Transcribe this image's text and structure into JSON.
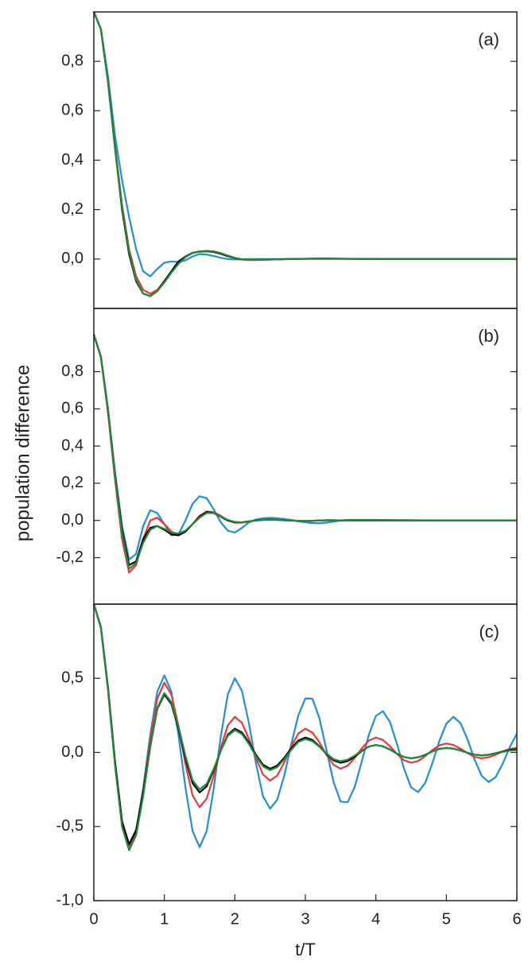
{
  "chart_data": [
    {
      "type": "line",
      "label": "(a)",
      "x": [
        0,
        0.1,
        0.2,
        0.3,
        0.4,
        0.5,
        0.6,
        0.7,
        0.8,
        0.9,
        1.0,
        1.1,
        1.2,
        1.3,
        1.4,
        1.5,
        1.6,
        1.7,
        1.8,
        1.9,
        2.0,
        2.1,
        2.2,
        2.3,
        2.4,
        2.8,
        3.2,
        4,
        5,
        6
      ],
      "xlim": [
        0,
        6
      ],
      "ylim": [
        -0.2,
        1.0
      ],
      "yticks": [
        {
          "value": 0,
          "label": "0,0"
        },
        {
          "value": 0.2,
          "label": "0,2"
        },
        {
          "value": 0.4,
          "label": "0,4"
        },
        {
          "value": 0.6,
          "label": "0,6"
        },
        {
          "value": 0.8,
          "label": "0,8"
        }
      ],
      "series": [
        {
          "color": "#1f8fd6",
          "values": [
            1.0,
            0.93,
            0.74,
            0.5,
            0.32,
            0.17,
            0.04,
            -0.05,
            -0.07,
            -0.04,
            -0.015,
            -0.01,
            -0.012,
            -0.005,
            0.01,
            0.02,
            0.018,
            0.012,
            0.005,
            0.0,
            -0.002,
            -0.001,
            0,
            0,
            0,
            0,
            0.001,
            0,
            0,
            0
          ]
        },
        {
          "color": "#e8383d",
          "values": [
            1.0,
            0.93,
            0.72,
            0.46,
            0.22,
            0.04,
            -0.07,
            -0.125,
            -0.14,
            -0.125,
            -0.09,
            -0.05,
            -0.015,
            0.01,
            0.024,
            0.03,
            0.031,
            0.028,
            0.02,
            0.011,
            0.004,
            -0.001,
            -0.003,
            -0.003,
            -0.002,
            0,
            0.001,
            0,
            0,
            0
          ]
        },
        {
          "color": "#000000",
          "values": [
            1.0,
            0.93,
            0.72,
            0.45,
            0.2,
            0.02,
            -0.09,
            -0.14,
            -0.15,
            -0.13,
            -0.09,
            -0.05,
            -0.01,
            0.01,
            0.025,
            0.03,
            0.032,
            0.03,
            0.022,
            0.012,
            0.004,
            -0.002,
            -0.004,
            -0.004,
            -0.003,
            0,
            0.002,
            0,
            0,
            0
          ]
        },
        {
          "color": "#1f8a3a",
          "values": [
            1.0,
            0.93,
            0.72,
            0.45,
            0.21,
            0.03,
            -0.085,
            -0.14,
            -0.15,
            -0.13,
            -0.095,
            -0.055,
            -0.02,
            0.008,
            0.024,
            0.031,
            0.033,
            0.031,
            0.024,
            0.014,
            0.005,
            -0.001,
            -0.004,
            -0.004,
            -0.003,
            0,
            0.002,
            0,
            0,
            0
          ]
        }
      ]
    },
    {
      "type": "line",
      "label": "(b)",
      "ylabel": "population difference",
      "x": [
        0,
        0.1,
        0.2,
        0.3,
        0.4,
        0.5,
        0.6,
        0.7,
        0.8,
        0.9,
        1.0,
        1.1,
        1.2,
        1.3,
        1.4,
        1.5,
        1.6,
        1.7,
        1.8,
        1.9,
        2.0,
        2.1,
        2.2,
        2.3,
        2.4,
        2.5,
        2.6,
        2.7,
        2.8,
        2.9,
        3.0,
        3.1,
        3.2,
        3.3,
        3.4,
        3.5,
        3.6,
        4,
        5,
        6
      ],
      "xlim": [
        0,
        6
      ],
      "ylim": [
        -0.45,
        1.14
      ],
      "yticks": [
        {
          "value": -0.2,
          "label": "-0,2"
        },
        {
          "value": 0,
          "label": "0,0"
        },
        {
          "value": 0.2,
          "label": "0,2"
        },
        {
          "value": 0.4,
          "label": "0,4"
        },
        {
          "value": 0.6,
          "label": "0,6"
        },
        {
          "value": 0.8,
          "label": "0,8"
        }
      ],
      "series": [
        {
          "color": "#1f8fd6",
          "values": [
            1.0,
            0.88,
            0.6,
            0.26,
            -0.03,
            -0.21,
            -0.18,
            -0.03,
            0.055,
            0.04,
            -0.02,
            -0.08,
            -0.075,
            0.0,
            0.09,
            0.13,
            0.12,
            0.06,
            -0.01,
            -0.055,
            -0.065,
            -0.04,
            -0.01,
            0.005,
            0.012,
            0.014,
            0.012,
            0.008,
            0.002,
            -0.005,
            -0.01,
            -0.014,
            -0.015,
            -0.012,
            -0.006,
            0,
            0.003,
            0.003,
            0,
            0
          ]
        },
        {
          "color": "#e8383d",
          "values": [
            1.0,
            0.88,
            0.58,
            0.22,
            -0.1,
            -0.28,
            -0.24,
            -0.1,
            0.0,
            0.015,
            -0.02,
            -0.06,
            -0.08,
            -0.06,
            -0.02,
            0.025,
            0.048,
            0.045,
            0.025,
            0.0,
            -0.012,
            -0.012,
            -0.006,
            0,
            0.004,
            0.005,
            0.004,
            0.001,
            0,
            -0.002,
            -0.003,
            -0.002,
            0,
            0.001,
            0.001,
            0,
            0,
            0,
            0,
            0
          ]
        },
        {
          "color": "#000000",
          "values": [
            1.0,
            0.88,
            0.6,
            0.25,
            -0.05,
            -0.24,
            -0.22,
            -0.1,
            -0.04,
            -0.03,
            -0.05,
            -0.075,
            -0.08,
            -0.06,
            -0.02,
            0.02,
            0.045,
            0.04,
            0.02,
            0.0,
            -0.01,
            -0.01,
            -0.005,
            0,
            0.003,
            0.004,
            0.003,
            0.001,
            0,
            -0.002,
            -0.003,
            -0.002,
            0,
            0.001,
            0.001,
            0,
            0,
            0,
            0,
            0
          ]
        },
        {
          "color": "#1f8a3a",
          "values": [
            1.0,
            0.88,
            0.6,
            0.24,
            -0.07,
            -0.26,
            -0.23,
            -0.12,
            -0.05,
            -0.03,
            -0.045,
            -0.065,
            -0.07,
            -0.055,
            -0.02,
            0.015,
            0.04,
            0.04,
            0.022,
            0.003,
            -0.008,
            -0.01,
            -0.005,
            0,
            0.003,
            0.004,
            0.003,
            0.001,
            0,
            -0.002,
            -0.003,
            -0.002,
            0,
            0.001,
            0.001,
            0,
            0,
            0,
            0,
            0
          ]
        }
      ]
    },
    {
      "type": "line",
      "label": "(c)",
      "xlabel": "t/T",
      "x": [
        0,
        0.1,
        0.2,
        0.3,
        0.4,
        0.5,
        0.6,
        0.7,
        0.8,
        0.9,
        1.0,
        1.1,
        1.2,
        1.3,
        1.4,
        1.5,
        1.6,
        1.7,
        1.8,
        1.9,
        2.0,
        2.1,
        2.2,
        2.3,
        2.4,
        2.5,
        2.6,
        2.7,
        2.8,
        2.9,
        3.0,
        3.1,
        3.2,
        3.3,
        3.4,
        3.5,
        3.6,
        3.7,
        3.8,
        3.9,
        4.0,
        4.1,
        4.2,
        4.3,
        4.4,
        4.5,
        4.6,
        4.7,
        4.8,
        4.9,
        5.0,
        5.1,
        5.2,
        5.3,
        5.4,
        5.5,
        5.6,
        5.7,
        5.8,
        5.9,
        6.0
      ],
      "xlim": [
        0,
        6
      ],
      "xticks": [
        0,
        1,
        2,
        3,
        4,
        5,
        6
      ],
      "ylim": [
        -1,
        1
      ],
      "yticks": [
        {
          "value": -1,
          "label": "-1,0"
        },
        {
          "value": -0.5,
          "label": "-0,5"
        },
        {
          "value": 0,
          "label": "0,0"
        },
        {
          "value": 0.5,
          "label": "0,5"
        }
      ],
      "series": [
        {
          "color": "#1f8fd6",
          "values": [
            1,
            0.843,
            0.433,
            -0.073,
            -0.483,
            -0.64,
            -0.529,
            -0.239,
            0.119,
            0.409,
            0.52,
            0.409,
            0.119,
            -0.239,
            -0.529,
            -0.64,
            -0.531,
            -0.246,
            0.106,
            0.391,
            0.5,
            0.416,
            0.196,
            -0.076,
            -0.296,
            -0.38,
            -0.32,
            -0.158,
            0.054,
            0.249,
            0.364,
            0.362,
            0.23,
            0.015,
            -0.2,
            -0.332,
            -0.336,
            -0.233,
            -0.062,
            0.118,
            0.246,
            0.278,
            0.205,
            0.056,
            -0.111,
            -0.236,
            -0.268,
            -0.206,
            -0.076,
            0.076,
            0.194,
            0.24,
            0.198,
            0.088,
            -0.048,
            -0.158,
            -0.2,
            -0.166,
            -0.076,
            0.036,
            0.126
          ]
        },
        {
          "color": "#e8383d",
          "values": [
            1,
            0.842,
            0.43,
            -0.08,
            -0.492,
            -0.65,
            -0.543,
            -0.263,
            0.083,
            0.363,
            0.47,
            0.39,
            0.18,
            -0.08,
            -0.29,
            -0.37,
            -0.312,
            -0.159,
            0.029,
            0.182,
            0.24,
            0.199,
            0.091,
            -0.041,
            -0.149,
            -0.19,
            -0.157,
            -0.069,
            0.039,
            0.127,
            0.16,
            0.134,
            0.067,
            -0.017,
            -0.084,
            -0.11,
            -0.09,
            -0.037,
            0.027,
            0.08,
            0.1,
            0.084,
            0.041,
            -0.011,
            -0.054,
            -0.07,
            -0.058,
            -0.025,
            0.015,
            0.048,
            0.06,
            0.05,
            0.025,
            -0.005,
            -0.03,
            -0.04,
            -0.033,
            -0.016,
            0.006,
            0.023,
            0.03
          ]
        },
        {
          "color": "#000000",
          "values": [
            1,
            0.845,
            0.44,
            -0.06,
            -0.465,
            -0.62,
            -0.524,
            -0.271,
            0.041,
            0.294,
            0.39,
            0.327,
            0.162,
            -0.042,
            -0.207,
            -0.27,
            -0.229,
            -0.121,
            0.011,
            0.119,
            0.16,
            0.134,
            0.067,
            -0.017,
            -0.084,
            -0.11,
            -0.09,
            -0.037,
            0.027,
            0.08,
            0.1,
            0.084,
            0.041,
            -0.011,
            -0.054,
            -0.07,
            -0.059,
            -0.029,
            0.009,
            0.039,
            0.05,
            0.041,
            0.019,
            -0.009,
            -0.031,
            -0.04,
            -0.033,
            -0.016,
            0.006,
            0.023,
            0.03,
            0.025,
            0.013,
            -0.003,
            -0.015,
            -0.02,
            -0.016,
            -0.006,
            0.006,
            0.016,
            0.02
          ]
        },
        {
          "color": "#1f8a3a",
          "values": [
            1,
            0.841,
            0.426,
            -0.086,
            -0.501,
            -0.66,
            -0.559,
            -0.294,
            0.034,
            0.299,
            0.4,
            0.338,
            0.175,
            -0.025,
            -0.188,
            -0.25,
            -0.212,
            -0.112,
            0.012,
            0.112,
            0.15,
            0.124,
            0.057,
            -0.027,
            -0.094,
            -0.12,
            -0.1,
            -0.047,
            0.017,
            0.07,
            0.09,
            0.076,
            0.038,
            -0.008,
            -0.046,
            -0.06,
            -0.049,
            -0.022,
            0.012,
            0.039,
            0.05,
            0.041,
            0.019,
            -0.009,
            -0.031,
            -0.04,
            -0.033,
            -0.016,
            0.006,
            0.023,
            0.03,
            0.025,
            0.013,
            -0.003,
            -0.015,
            -0.02,
            -0.017,
            -0.008,
            0.003,
            0.012,
            0.015
          ]
        }
      ]
    }
  ]
}
